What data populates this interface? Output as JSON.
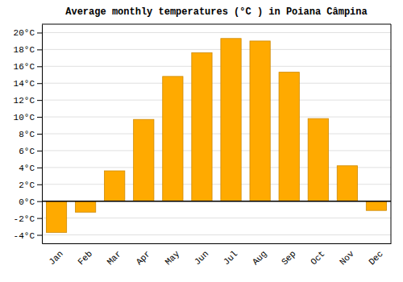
{
  "chart_data": {
    "type": "bar",
    "title": "Average monthly temperatures (°C ) in Poiana Câmpina",
    "categories": [
      "Jan",
      "Feb",
      "Mar",
      "Apr",
      "May",
      "Jun",
      "Jul",
      "Aug",
      "Sep",
      "Oct",
      "Nov",
      "Dec"
    ],
    "values": [
      -3.7,
      -1.3,
      3.6,
      9.7,
      14.8,
      17.6,
      19.3,
      19.0,
      15.3,
      9.8,
      4.2,
      -1.1
    ],
    "color": "#FFAA00",
    "ylim": [
      -5,
      21
    ],
    "yticks": [
      {
        "value": -4,
        "label": "-4°C"
      },
      {
        "value": -2,
        "label": "-2°C"
      },
      {
        "value": 0,
        "label": "0°C"
      },
      {
        "value": 2,
        "label": "2°C"
      },
      {
        "value": 4,
        "label": "4°C"
      },
      {
        "value": 6,
        "label": "6°C"
      },
      {
        "value": 8,
        "label": "8°C"
      },
      {
        "value": 10,
        "label": "10°C"
      },
      {
        "value": 12,
        "label": "12°C"
      },
      {
        "value": 14,
        "label": "14°C"
      },
      {
        "value": 16,
        "label": "16°C"
      },
      {
        "value": 18,
        "label": "18°C"
      },
      {
        "value": 20,
        "label": "20°C"
      }
    ],
    "grid": true
  }
}
